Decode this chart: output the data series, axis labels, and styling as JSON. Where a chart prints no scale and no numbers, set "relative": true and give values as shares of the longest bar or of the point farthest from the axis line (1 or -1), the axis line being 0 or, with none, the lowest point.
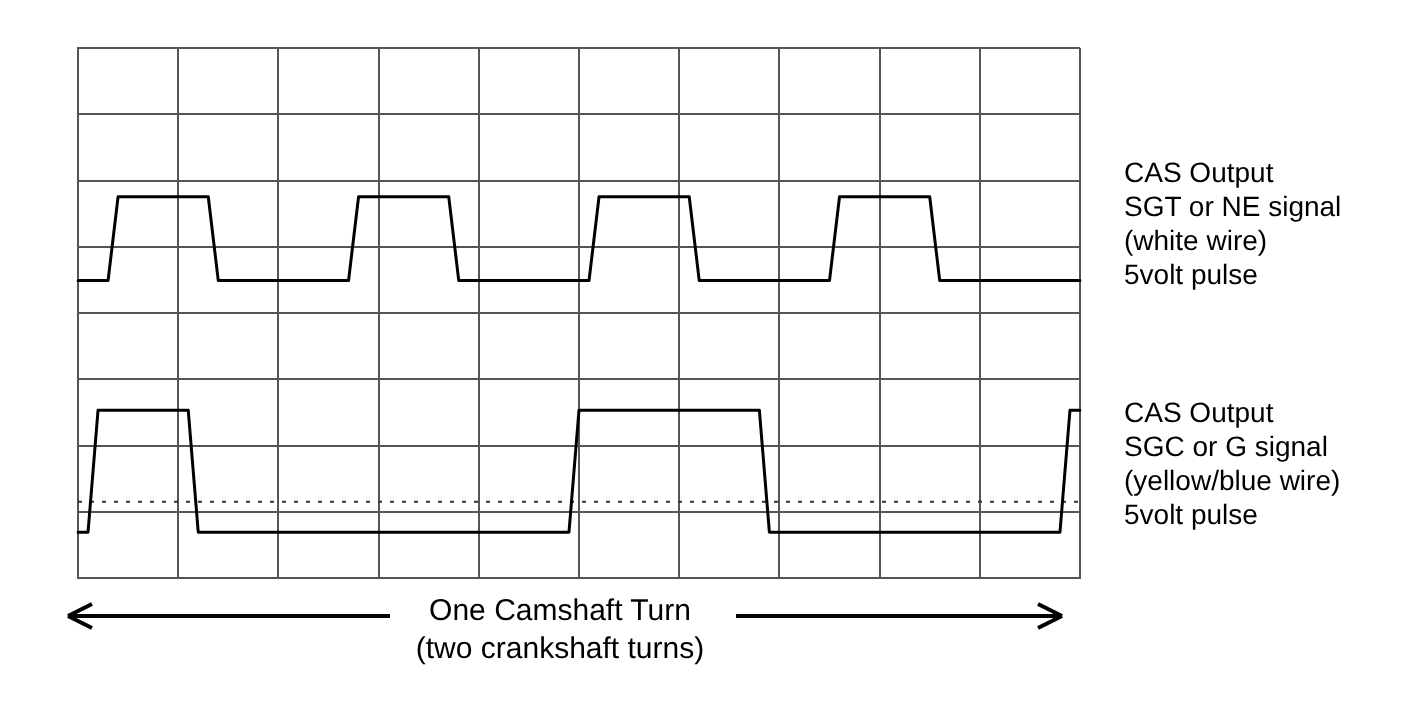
{
  "chart_data": {
    "type": "line",
    "relative": true,
    "grid": true,
    "categories": [
      null,
      null,
      null,
      null,
      null,
      null,
      null,
      null,
      null,
      null,
      null,
      null,
      null,
      null,
      null,
      null,
      null,
      null,
      null,
      null,
      null,
      null,
      null,
      null,
      null,
      null,
      null,
      null,
      null,
      null,
      null,
      null,
      null,
      null,
      null,
      null,
      null,
      null,
      null,
      null,
      null,
      null,
      null,
      null,
      null,
      null,
      null,
      null,
      null,
      null,
      null,
      null,
      null,
      null,
      null,
      null,
      null,
      null,
      null,
      null,
      null,
      null,
      null,
      null,
      null,
      null,
      null,
      null,
      null,
      null,
      null,
      null,
      null,
      null,
      null,
      null,
      null,
      null,
      null,
      null,
      null,
      null,
      null,
      null,
      null,
      null,
      null,
      null,
      null,
      null,
      null,
      null,
      null,
      null,
      null,
      null,
      null,
      null,
      null,
      null,
      null
    ],
    "series": [
      {
        "name": "CAS Output\nSGT or NE signal\n(white wire)\n5volt pulse",
        "color": "#000000",
        "values": [
          0.78,
          0.78,
          0.78,
          0.78,
          1,
          1,
          1,
          1,
          1,
          1,
          1,
          1,
          1,
          1,
          0.78,
          0.78,
          0.78,
          0.78,
          0.78,
          0.78,
          0.78,
          0.78,
          0.78,
          0.78,
          0.78,
          0.78,
          0.78,
          0.78,
          1,
          1,
          1,
          1,
          1,
          1,
          1,
          1,
          1,
          1,
          0.78,
          0.78,
          0.78,
          0.78,
          0.78,
          0.78,
          0.78,
          0.78,
          0.78,
          0.78,
          0.78,
          0.78,
          0.78,
          0.78,
          1,
          1,
          1,
          1,
          1,
          1,
          1,
          1,
          1,
          1,
          0.78,
          0.78,
          0.78,
          0.78,
          0.78,
          0.78,
          0.78,
          0.78,
          0.78,
          0.78,
          0.78,
          0.78,
          0.78,
          0.78,
          1,
          1,
          1,
          1,
          1,
          1,
          1,
          1,
          1,
          1,
          0.78,
          0.78,
          0.78,
          0.78,
          0.78,
          0.78,
          0.78,
          0.78,
          0.78,
          0.78,
          0.78,
          0.78,
          0.78,
          0.78,
          0.78
        ]
      },
      {
        "name": "CAS Output\nSGC or G signal\n(yellow/blue wire)\n5volt pulse",
        "color": "#000000",
        "values": [
          0.12,
          0.12,
          0.44,
          0.44,
          0.44,
          0.44,
          0.44,
          0.44,
          0.44,
          0.44,
          0.44,
          0.44,
          0.12,
          0.12,
          0.12,
          0.12,
          0.12,
          0.12,
          0.12,
          0.12,
          0.12,
          0.12,
          0.12,
          0.12,
          0.12,
          0.12,
          0.12,
          0.12,
          0.12,
          0.12,
          0.12,
          0.12,
          0.12,
          0.12,
          0.12,
          0.12,
          0.12,
          0.12,
          0.12,
          0.12,
          0.12,
          0.12,
          0.12,
          0.12,
          0.12,
          0.12,
          0.12,
          0.12,
          0.12,
          0.12,
          0.44,
          0.44,
          0.44,
          0.44,
          0.44,
          0.44,
          0.44,
          0.44,
          0.44,
          0.44,
          0.44,
          0.44,
          0.44,
          0.44,
          0.44,
          0.44,
          0.44,
          0.44,
          0.44,
          0.12,
          0.12,
          0.12,
          0.12,
          0.12,
          0.12,
          0.12,
          0.12,
          0.12,
          0.12,
          0.12,
          0.12,
          0.12,
          0.12,
          0.12,
          0.12,
          0.12,
          0.12,
          0.12,
          0.12,
          0.12,
          0.12,
          0.12,
          0.12,
          0.12,
          0.12,
          0.12,
          0.12,
          0.12,
          0.12,
          0.44,
          0.44
        ]
      }
    ],
    "ref_lines": [
      {
        "axis": "y",
        "value": 0.2,
        "line_style": "dotted",
        "color": "#333333"
      }
    ],
    "xlabel": "One Camshaft Turn\n(two crankshaft turns)"
  }
}
